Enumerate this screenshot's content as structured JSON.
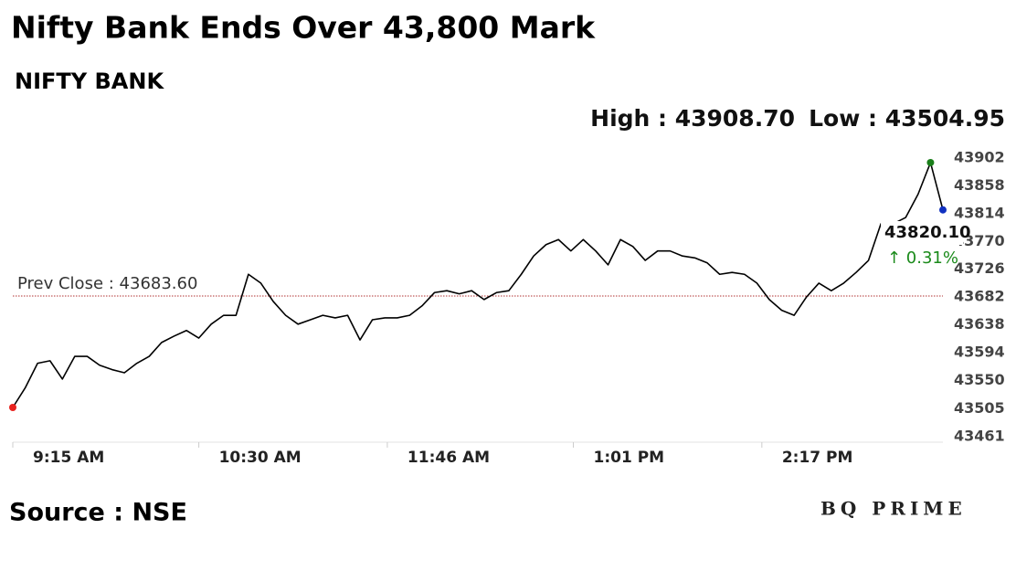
{
  "chart_data": {
    "type": "line",
    "title": "Nifty Bank Ends Over 43,800 Mark",
    "subtitle": "NIFTY BANK",
    "high_label": "High : 43908.70",
    "low_label": "Low : 43504.95",
    "last_label": "43820.10",
    "change_label": "↑ 0.31%",
    "source": "Source : NSE",
    "brand": "BQ PRIME",
    "prev_close": {
      "value": 43683.6,
      "label": "Prev Close : 43683.60",
      "color": "#b03030"
    },
    "x": [
      "9:15 AM",
      "9:20 AM",
      "9:25 AM",
      "9:30 AM",
      "9:35 AM",
      "9:40 AM",
      "9:45 AM",
      "9:50 AM",
      "9:55 AM",
      "10:00 AM",
      "10:05 AM",
      "10:10 AM",
      "10:15 AM",
      "10:20 AM",
      "10:25 AM",
      "10:30 AM",
      "10:35 AM",
      "10:40 AM",
      "10:45 AM",
      "10:50 AM",
      "10:55 AM",
      "11:00 AM",
      "11:05 AM",
      "11:10 AM",
      "11:15 AM",
      "11:20 AM",
      "11:25 AM",
      "11:30 AM",
      "11:35 AM",
      "11:40 AM",
      "11:45 AM",
      "11:50 AM",
      "11:55 AM",
      "12:00 PM",
      "12:05 PM",
      "12:10 PM",
      "12:15 PM",
      "12:20 PM",
      "12:25 PM",
      "12:30 PM",
      "12:35 PM",
      "12:40 PM",
      "12:45 PM",
      "12:50 PM",
      "12:55 PM",
      "1:00 PM",
      "1:05 PM",
      "1:10 PM",
      "1:15 PM",
      "1:20 PM",
      "1:25 PM",
      "1:30 PM",
      "1:35 PM",
      "1:40 PM",
      "1:45 PM",
      "1:50 PM",
      "1:55 PM",
      "2:00 PM",
      "2:05 PM",
      "2:10 PM",
      "2:15 PM",
      "2:20 PM",
      "2:25 PM",
      "2:30 PM",
      "2:35 PM",
      "2:40 PM",
      "2:45 PM",
      "2:50 PM",
      "2:55 PM",
      "3:00 PM",
      "3:05 PM",
      "3:10 PM",
      "3:15 PM",
      "3:20 PM",
      "3:25 PM",
      "3:30 PM"
    ],
    "series": [
      {
        "name": "NIFTY BANK",
        "color": "#000000",
        "values": [
          43507,
          43538,
          43577,
          43581,
          43552,
          43588,
          43588,
          43574,
          43567,
          43562,
          43577,
          43588,
          43610,
          43620,
          43629,
          43617,
          43639,
          43653,
          43653,
          43718,
          43704,
          43675,
          43653,
          43639,
          43646,
          43653,
          43649,
          43653,
          43614,
          43646,
          43649,
          43649,
          43653,
          43668,
          43689,
          43692,
          43687,
          43692,
          43678,
          43689,
          43692,
          43718,
          43747,
          43765,
          43773,
          43755,
          43773,
          43755,
          43733,
          43773,
          43762,
          43740,
          43755,
          43755,
          43747,
          43744,
          43736,
          43718,
          43721,
          43718,
          43704,
          43678,
          43661,
          43653,
          43682,
          43704,
          43692,
          43704,
          43721,
          43740,
          43798,
          43798,
          43808,
          43845,
          43895,
          43820.1
        ]
      }
    ],
    "marker_colors": {
      "start": "#e8231f",
      "high": "#1a7f1a",
      "end": "#1030c0"
    },
    "change_color": "#1a8a1a",
    "xticks": [
      "9:15 AM",
      "10:30 AM",
      "11:46 AM",
      "1:01 PM",
      "2:17 PM"
    ],
    "ylim": [
      43452,
      43921
    ],
    "yticks": [
      43461,
      43505,
      43550,
      43594,
      43638,
      43682,
      43726,
      43770,
      43814,
      43858,
      43902
    ]
  }
}
